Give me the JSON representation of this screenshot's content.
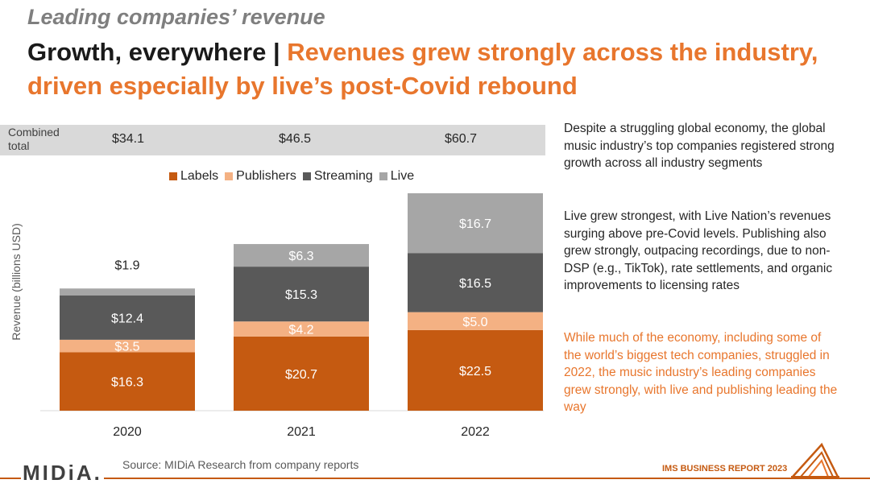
{
  "kicker": "Leading companies’ revenue",
  "headline": {
    "lead": "Growth, everywhere | ",
    "accent": "Revenues grew strongly across the industry, driven especially by live’s post-Covid rebound"
  },
  "combined": {
    "label": "Combined total",
    "values": [
      "$34.1",
      "$46.5",
      "$60.7"
    ]
  },
  "colors": {
    "labels": "#c55a11",
    "publishers": "#f4b183",
    "streaming": "#595959",
    "live": "#a6a6a6",
    "accent": "#e8762d"
  },
  "chart_data": {
    "type": "bar",
    "stacked": true,
    "categories": [
      "2020",
      "2021",
      "2022"
    ],
    "ylabel": "Revenue (billions USD)",
    "legend_position": "top",
    "series": [
      {
        "name": "Labels",
        "values": [
          16.3,
          20.7,
          22.5
        ],
        "labels": [
          "$16.3",
          "$20.7",
          "$22.5"
        ]
      },
      {
        "name": "Publishers",
        "values": [
          3.5,
          4.2,
          5.0
        ],
        "labels": [
          "$3.5",
          "$4.2",
          "$5.0"
        ]
      },
      {
        "name": "Streaming",
        "values": [
          12.4,
          15.3,
          16.5
        ],
        "labels": [
          "$12.4",
          "$15.3",
          "$16.5"
        ]
      },
      {
        "name": "Live",
        "values": [
          1.9,
          6.3,
          16.7
        ],
        "labels": [
          "$1.9",
          "$6.3",
          "$16.7"
        ]
      }
    ]
  },
  "side": {
    "p1": "Despite a struggling global economy, the global music industry’s top companies registered strong growth across all industry segments",
    "p2": "Live grew strongest, with Live Nation’s revenues surging above pre-Covid levels. Publishing also grew strongly, outpacing recordings, due to non-DSP (e.g., TikTok), rate settlements, and organic improvements to licensing rates",
    "p3": "While much of the economy, including some of the world’s biggest tech companies, struggled in 2022, the music industry’s leading companies grew strongly, with live and publishing leading the way"
  },
  "footer": {
    "logo": "MIDiA.",
    "source": "Source: MIDiA Research from company reports",
    "report": "IMS BUSINESS REPORT 2023"
  }
}
